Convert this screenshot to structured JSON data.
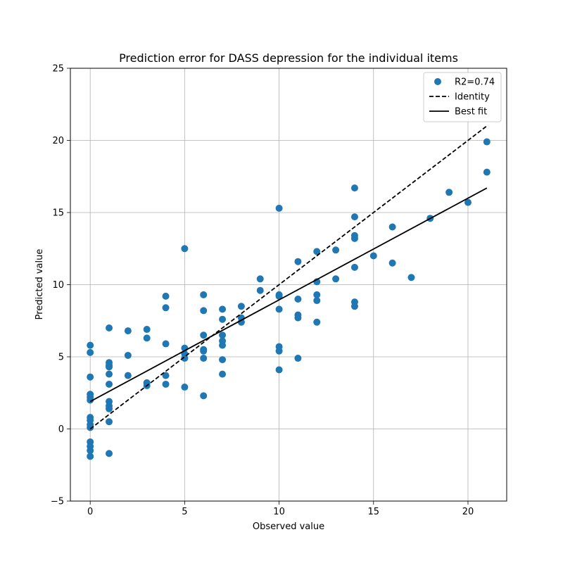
{
  "chart_data": {
    "type": "scatter",
    "title": "Prediction error for DASS depression for the individual items",
    "xlabel": "Observed value",
    "ylabel": "Predicted value",
    "xlim": [
      -1.05,
      22.05
    ],
    "ylim": [
      -5,
      25
    ],
    "xticks": [
      0,
      5,
      10,
      15,
      20
    ],
    "yticks": [
      -5,
      0,
      5,
      10,
      15,
      20,
      25
    ],
    "xtick_labels": [
      "0",
      "5",
      "10",
      "15",
      "20"
    ],
    "ytick_labels": [
      "−5",
      "0",
      "5",
      "10",
      "15",
      "20",
      "25"
    ],
    "grid": true,
    "legend_position": "top-right",
    "series": [
      {
        "name": "R2=0.74",
        "kind": "scatter",
        "color": "#1f77b4",
        "points": [
          [
            0,
            5.8
          ],
          [
            0,
            5.3
          ],
          [
            0,
            3.6
          ],
          [
            0,
            2.4
          ],
          [
            0,
            2.2
          ],
          [
            0,
            2.0
          ],
          [
            0,
            0.8
          ],
          [
            0,
            0.6
          ],
          [
            0,
            0.3
          ],
          [
            0,
            0.1
          ],
          [
            0,
            -0.9
          ],
          [
            0,
            -1.2
          ],
          [
            0,
            -1.5
          ],
          [
            0,
            -1.9
          ],
          [
            1,
            7.0
          ],
          [
            1,
            4.6
          ],
          [
            1,
            4.4
          ],
          [
            1,
            4.3
          ],
          [
            1,
            3.8
          ],
          [
            1,
            3.1
          ],
          [
            1,
            1.9
          ],
          [
            1,
            1.6
          ],
          [
            1,
            1.4
          ],
          [
            1,
            0.5
          ],
          [
            1,
            -1.7
          ],
          [
            2,
            6.8
          ],
          [
            2,
            5.1
          ],
          [
            2,
            3.7
          ],
          [
            3,
            6.9
          ],
          [
            3,
            6.3
          ],
          [
            3,
            3.2
          ],
          [
            3,
            3.0
          ],
          [
            4,
            9.2
          ],
          [
            4,
            8.4
          ],
          [
            4,
            5.9
          ],
          [
            4,
            3.7
          ],
          [
            4,
            3.1
          ],
          [
            5,
            12.5
          ],
          [
            5,
            5.6
          ],
          [
            5,
            5.2
          ],
          [
            5,
            4.9
          ],
          [
            5,
            2.9
          ],
          [
            6,
            9.3
          ],
          [
            6,
            8.2
          ],
          [
            6,
            6.5
          ],
          [
            6,
            5.5
          ],
          [
            6,
            5.4
          ],
          [
            6,
            4.9
          ],
          [
            6,
            2.3
          ],
          [
            7,
            8.3
          ],
          [
            7,
            7.6
          ],
          [
            7,
            6.5
          ],
          [
            7,
            6.1
          ],
          [
            7,
            5.8
          ],
          [
            7,
            4.8
          ],
          [
            7,
            3.8
          ],
          [
            8,
            8.5
          ],
          [
            8,
            7.7
          ],
          [
            8,
            7.4
          ],
          [
            9,
            10.4
          ],
          [
            9,
            9.6
          ],
          [
            10,
            15.3
          ],
          [
            10,
            9.3
          ],
          [
            10,
            9.2
          ],
          [
            10,
            8.3
          ],
          [
            10,
            5.7
          ],
          [
            10,
            5.4
          ],
          [
            10,
            4.1
          ],
          [
            11,
            11.6
          ],
          [
            11,
            9.0
          ],
          [
            11,
            7.9
          ],
          [
            11,
            7.7
          ],
          [
            11,
            4.9
          ],
          [
            12,
            12.3
          ],
          [
            12,
            10.2
          ],
          [
            12,
            9.3
          ],
          [
            12,
            8.9
          ],
          [
            12,
            7.4
          ],
          [
            13,
            12.4
          ],
          [
            13,
            10.4
          ],
          [
            14,
            16.7
          ],
          [
            14,
            14.7
          ],
          [
            14,
            13.4
          ],
          [
            14,
            13.2
          ],
          [
            14,
            11.2
          ],
          [
            14,
            8.8
          ],
          [
            14,
            8.5
          ],
          [
            15,
            12.0
          ],
          [
            16,
            14.0
          ],
          [
            16,
            11.5
          ],
          [
            17,
            10.5
          ],
          [
            18,
            14.6
          ],
          [
            19,
            16.4
          ],
          [
            20,
            15.7
          ],
          [
            21,
            19.9
          ],
          [
            21,
            17.8
          ]
        ]
      },
      {
        "name": "Identity",
        "kind": "line",
        "style": "dashed",
        "color": "#000000",
        "points": [
          [
            0,
            0
          ],
          [
            21,
            21
          ]
        ]
      },
      {
        "name": "Best fit",
        "kind": "line",
        "style": "solid",
        "color": "#000000",
        "points": [
          [
            0,
            1.9
          ],
          [
            21,
            16.7
          ]
        ]
      }
    ]
  }
}
